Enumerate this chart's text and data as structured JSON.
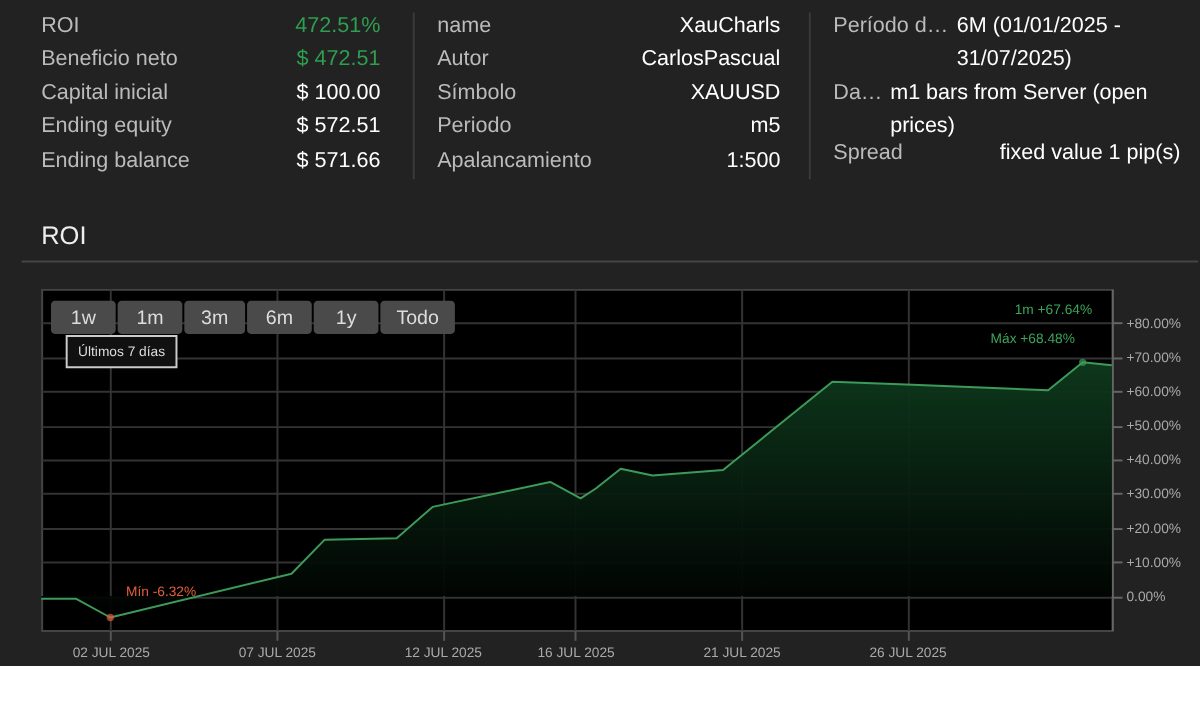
{
  "chart_data": [
    {
      "type": "other",
      "annotations": [
        "ROI",
        "472.51%",
        "Beneficio neto",
        "$ 472.51",
        "Capital inicial",
        "$ 100.00",
        "Ending equity",
        "$ 572.51",
        "Ending balance",
        "$ 571.66",
        "name",
        "XauCharls",
        "Autor",
        "CarlosPascual",
        "Símbolo",
        "XAUUSD",
        "Periodo",
        "m5",
        "Apalancamiento",
        "1:500",
        "Período d…",
        "6M (01/01/2025 - 31/07/2025)",
        "Da…",
        "m1 bars from Server (open prices)",
        "Spread",
        "fixed value 1 pip(s)"
      ],
      "colors": [
        "#bbbbbb",
        "#2e9e4f",
        "#bbbbbb",
        "#2e9e4f",
        "#bbbbbb",
        "#ffffff",
        "#bbbbbb",
        "#ffffff",
        "#bbbbbb",
        "#ffffff",
        "#bbbbbb",
        "#ffffff",
        "#bbbbbb",
        "#ffffff",
        "#bbbbbb",
        "#ffffff",
        "#bbbbbb",
        "#ffffff",
        "#bbbbbb",
        "#ffffff",
        "#bbbbbb",
        "#ffffff",
        "#bbbbbb",
        "#ffffff",
        "#bbbbbb",
        "#ffffff"
      ]
    },
    {
      "type": "area",
      "title": "ROI",
      "x": [
        "2025-06-29T22:00",
        "2025-06-30T23:00",
        "2025-07-02T00:00",
        "2025-07-07T11:00",
        "2025-07-08T11:00",
        "2025-07-10T15:00",
        "2025-07-11T17:00",
        "2025-07-15T06:00",
        "2025-07-16T04:00",
        "2025-07-16T15:00",
        "2025-07-17T09:00",
        "2025-07-18T08:00",
        "2025-07-20T11:00",
        "2025-07-23T18:00",
        "2025-07-26T04:00",
        "2025-07-30T06:00",
        "2025-07-31T07:00",
        "2025-08-01T04:00"
      ],
      "series": [
        {
          "color": "#3d9b5a",
          "values": [
            -0.8,
            -0.8,
            -6.32,
            6.5,
            16.5,
            16.9,
            26.1,
            33.4,
            28.6,
            31.5,
            37.3,
            35.3,
            36.9,
            62.8,
            61.9,
            60.3,
            68.48,
            67.64
          ]
        }
      ],
      "xlim": [
        "2025-06-29T22:00",
        "2025-08-01T04:00"
      ],
      "xticks": [
        {
          "value": "2025-07-02T00:00",
          "label": "02 JUL 2025"
        },
        {
          "value": "2025-07-07T00:00",
          "label": "07 JUL 2025"
        },
        {
          "value": "2025-07-12T00:00",
          "label": "12 JUL 2025"
        },
        {
          "value": "2025-07-16T00:00",
          "label": "16 JUL 2025"
        },
        {
          "value": "2025-07-21T00:00",
          "label": "21 JUL 2025"
        },
        {
          "value": "2025-07-26T00:00",
          "label": "26 JUL 2025"
        }
      ],
      "ylim": [
        -10,
        90
      ],
      "yticks": [
        {
          "value": 0,
          "label": "0.00%"
        },
        {
          "value": 10,
          "label": "+10.00%"
        },
        {
          "value": 20,
          "label": "+20.00%"
        },
        {
          "value": 30,
          "label": "+30.00%"
        },
        {
          "value": 40,
          "label": "+40.00%"
        },
        {
          "value": 50,
          "label": "+50.00%"
        },
        {
          "value": 60,
          "label": "+60.00%"
        },
        {
          "value": 70,
          "label": "+70.00%"
        },
        {
          "value": 80,
          "label": "+80.00%"
        }
      ],
      "grid": true,
      "marker": "none",
      "line_style": "solid",
      "annotations": [
        "1w",
        "1m",
        "3m",
        "6m",
        "1y",
        "Todo",
        "Últimos 7 días",
        "1m +67.64%",
        {
          "text": "Mín -6.32%",
          "x": "2025-07-02T00:00",
          "y": -6.32
        },
        {
          "text": "Máx +68.48%",
          "x": "2025-07-31T07:00",
          "y": 68.48
        }
      ]
    }
  ]
}
